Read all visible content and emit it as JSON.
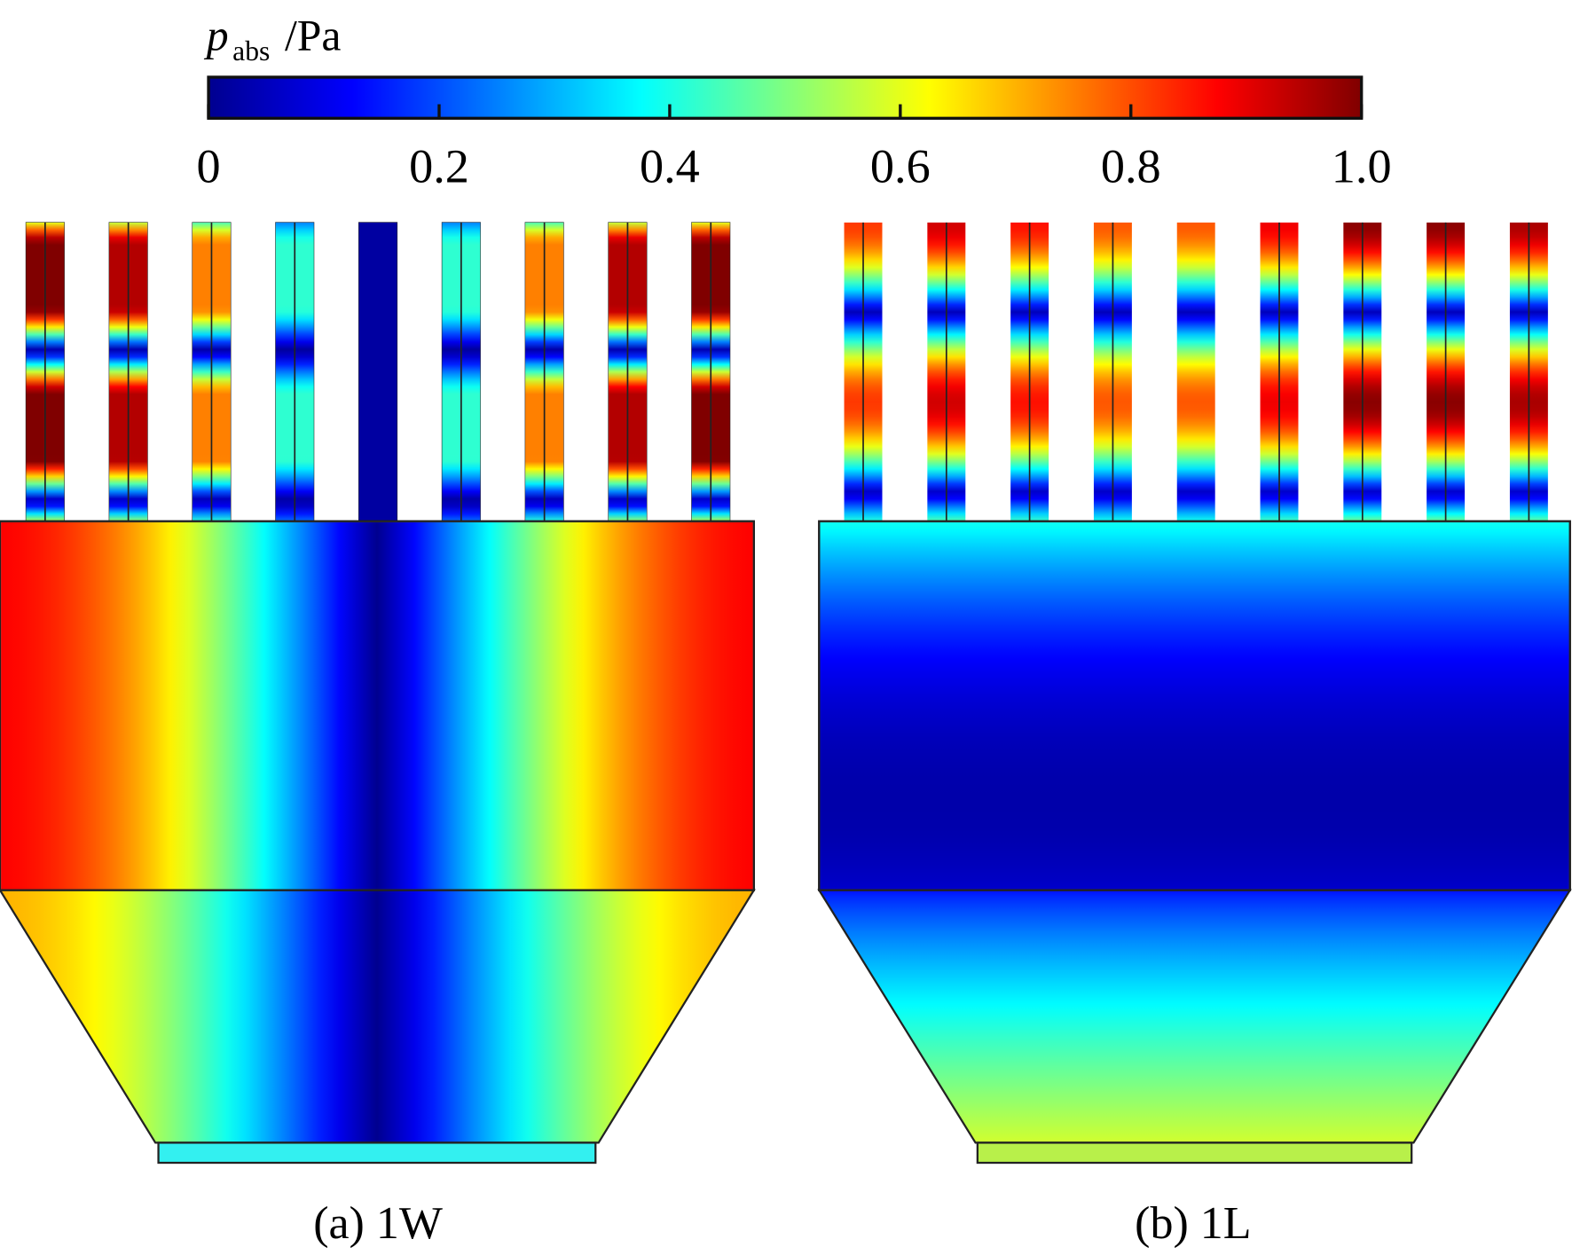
{
  "colorbar": {
    "label": {
      "symbol": "p",
      "subscript": "abs",
      "unit": "/Pa"
    },
    "lim": [
      0,
      1
    ],
    "ticks": [
      0,
      0.2,
      0.4,
      0.6,
      0.8,
      {
        "value": 1,
        "label": "1.0"
      }
    ]
  },
  "panels": [
    {
      "caption": "(a) 1W"
    },
    {
      "caption": "(b) 1L"
    }
  ]
}
